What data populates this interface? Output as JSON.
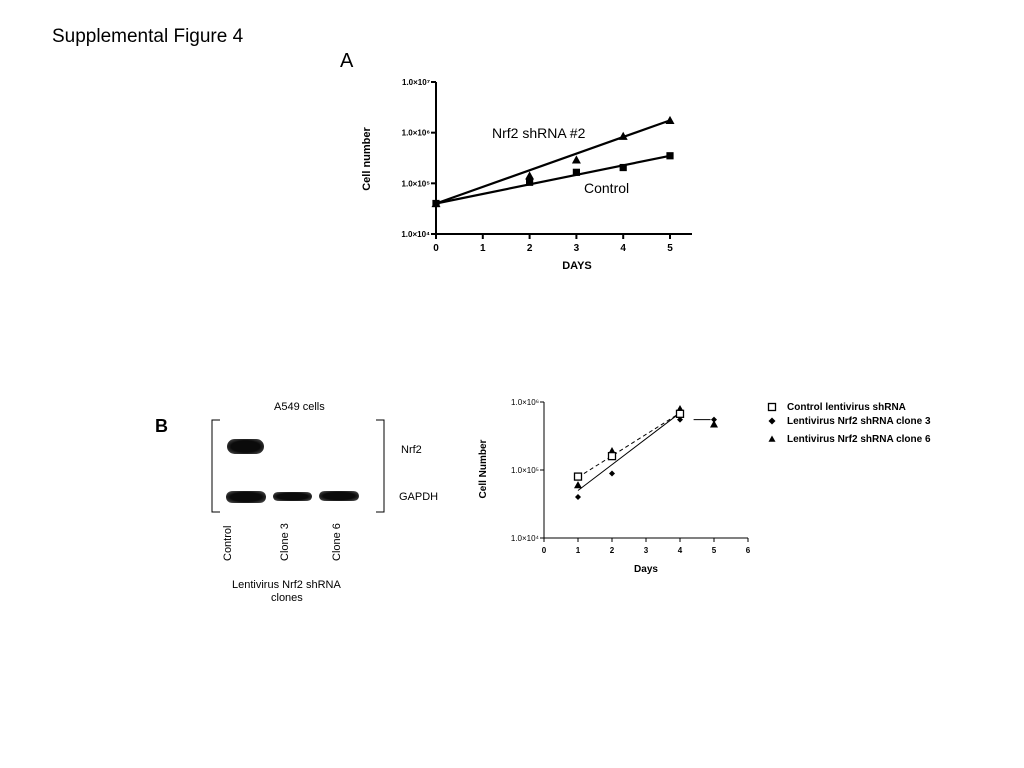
{
  "figure": {
    "title": "Supplemental Figure 4",
    "panel_a_letter": "A",
    "panel_b_letter": "B"
  },
  "blot": {
    "title": "A549 cells",
    "bands": [
      "Nrf2",
      "GAPDH"
    ],
    "lanes": [
      "Control",
      "Clone 3",
      "Clone 6"
    ],
    "caption_line1": "Lentivirus Nrf2 shRNA",
    "caption_line2": "clones",
    "band_intensity": {
      "Nrf2": [
        1.0,
        0,
        0
      ],
      "GAPDH": [
        1.0,
        0.8,
        0.85
      ]
    }
  },
  "chart_data": [
    {
      "type": "line",
      "title": "",
      "xlabel": "DAYS",
      "ylabel": "Cell number",
      "scale_y": "log",
      "xlim": [
        0,
        5
      ],
      "ylim": [
        10000,
        10000000
      ],
      "x_ticks": [
        "0",
        "1",
        "2",
        "3",
        "4",
        "5"
      ],
      "y_ticks": [
        "1.0×10⁴",
        "1.0×10⁵",
        "1.0×10⁶",
        "1.0×10⁷"
      ],
      "grid": false,
      "series": [
        {
          "name": "Nrf2 shRNA #2",
          "marker": "triangle",
          "points": [
            [
              0,
              40000
            ],
            [
              2,
              140000
            ],
            [
              3,
              290000
            ],
            [
              4,
              850000
            ],
            [
              5,
              1750000
            ]
          ],
          "fit": [
            [
              0,
              40000
            ],
            [
              5,
              1750000
            ]
          ]
        },
        {
          "name": "Control",
          "marker": "square",
          "points": [
            [
              0,
              40000
            ],
            [
              2,
              105000
            ],
            [
              3,
              165000
            ],
            [
              4,
              205000
            ],
            [
              5,
              350000
            ]
          ],
          "fit": [
            [
              0,
              40000
            ],
            [
              5,
              350000
            ]
          ]
        }
      ]
    },
    {
      "type": "line",
      "title": "",
      "xlabel": "Days",
      "ylabel": "Cell Number",
      "scale_y": "log",
      "xlim": [
        0,
        6
      ],
      "ylim": [
        10000,
        1000000
      ],
      "x_ticks": [
        "0",
        "1",
        "2",
        "3",
        "4",
        "5",
        "6"
      ],
      "y_ticks": [
        "1.0×10⁴",
        "1.0×10⁵",
        "1.0×10⁶"
      ],
      "grid": false,
      "legend_position": "top-right",
      "series": [
        {
          "name": "Control lentivirus shRNA",
          "marker": "open-square",
          "line": "dashed",
          "points": [
            [
              1,
              80000
            ],
            [
              2,
              160000
            ],
            [
              4,
              670000
            ]
          ],
          "fit": [
            [
              1,
              78000
            ],
            [
              4,
              690000
            ]
          ]
        },
        {
          "name": "Lentivirus Nrf2 shRNA clone 3",
          "marker": "diamond",
          "line": "solid",
          "points": [
            [
              1,
              40000
            ],
            [
              2,
              89000
            ],
            [
              4,
              550000
            ],
            [
              5,
              550000
            ]
          ],
          "fit": [
            [
              1,
              50000
            ],
            [
              4,
              690000
            ]
          ]
        },
        {
          "name": "Lentivirus Nrf2 shRNA clone 6",
          "marker": "triangle",
          "line": "none",
          "points": [
            [
              1,
              60000
            ],
            [
              2,
              190000
            ],
            [
              4,
              790000
            ],
            [
              5,
              470000
            ]
          ]
        }
      ],
      "extra_segment": [
        [
          4.4,
          550000
        ],
        [
          4.9,
          550000
        ]
      ]
    }
  ]
}
